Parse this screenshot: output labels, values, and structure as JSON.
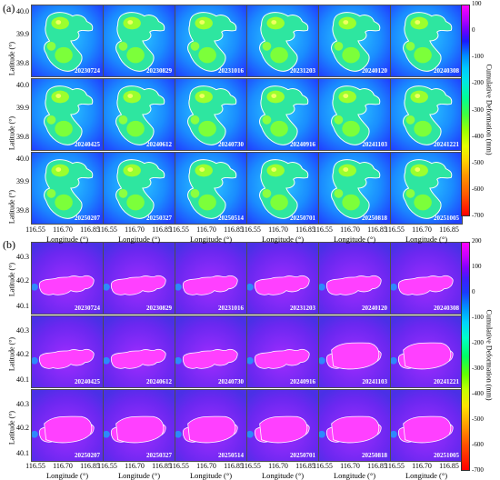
{
  "panels": [
    {
      "label": "(a)",
      "ylabel": "Latitude (°)",
      "yticks": [
        "40.0",
        "39.9",
        "39.8"
      ],
      "xticks": [
        "116.55",
        "116.70",
        "116.85"
      ],
      "xlabel": "Longitude (°)",
      "colorbar_title": "Cumulative Deformation (mm)",
      "colorbar_ticks": [
        "100",
        "0",
        "-100",
        "-200",
        "-300",
        "-400",
        "-500",
        "-600",
        "-700"
      ],
      "dates": [
        "20230724",
        "20230829",
        "20231016",
        "20231203",
        "20240120",
        "20240308",
        "20240425",
        "20240612",
        "20240730",
        "20240916",
        "20241103",
        "20241221",
        "20250207",
        "20250327",
        "20250514",
        "20250701",
        "20250818",
        "20251005"
      ]
    },
    {
      "label": "(b)",
      "ylabel": "Latitude (°)",
      "yticks": [
        "40.3",
        "40.2",
        "40.1"
      ],
      "xticks": [
        "116.55",
        "116.70",
        "116.85"
      ],
      "xlabel": "Longitude (°)",
      "colorbar_title": "Cumulative Deformation (mm)",
      "colorbar_ticks": [
        "200",
        "100",
        "0",
        "-100",
        "-200",
        "-300",
        "-400",
        "-500",
        "-600",
        "-700"
      ],
      "dates": [
        "20230724",
        "20230829",
        "20231016",
        "20231203",
        "20240120",
        "20240308",
        "20240425",
        "20240612",
        "20240730",
        "20240916",
        "20241103",
        "20241221",
        "20250207",
        "20250327",
        "20250514",
        "20250701",
        "20250818",
        "20251005"
      ]
    }
  ]
}
